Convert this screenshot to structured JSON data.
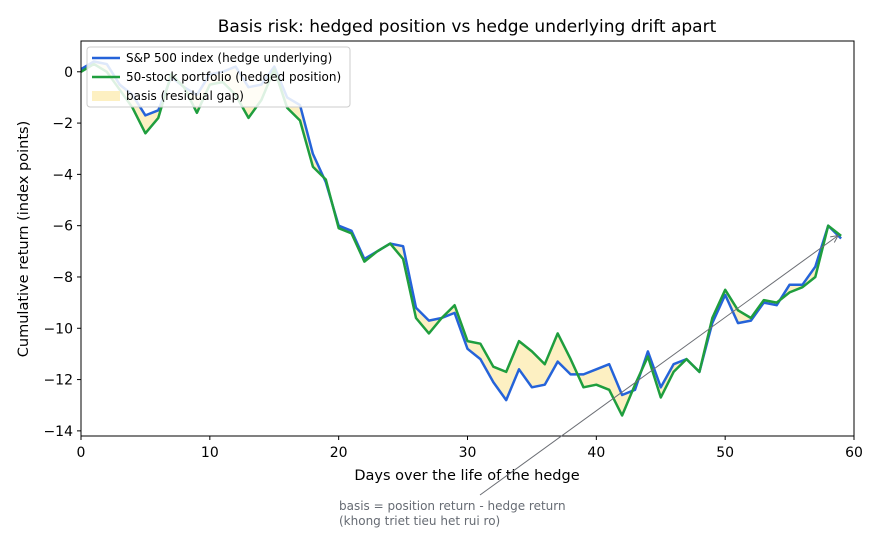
{
  "chart_data": {
    "type": "line",
    "title": "Basis risk: hedged position vs hedge underlying drift apart",
    "xlabel": "Days over the life of the hedge",
    "ylabel": "Cumulative return (index points)",
    "xlim": [
      0,
      60
    ],
    "ylim": [
      -14.2,
      1.2
    ],
    "xticks": [
      0,
      10,
      20,
      30,
      40,
      50,
      60
    ],
    "yticks": [
      0,
      -2,
      -4,
      -6,
      -8,
      -10,
      -12,
      -14
    ],
    "ytick_labels": [
      "0",
      "−2",
      "−4",
      "−6",
      "−8",
      "−10",
      "−12",
      "−14"
    ],
    "grid": false,
    "legend_position": "top-left",
    "x": [
      0,
      1,
      2,
      3,
      4,
      5,
      6,
      7,
      8,
      9,
      10,
      11,
      12,
      13,
      14,
      15,
      16,
      17,
      18,
      19,
      20,
      21,
      22,
      23,
      24,
      25,
      26,
      27,
      28,
      29,
      30,
      31,
      32,
      33,
      34,
      35,
      36,
      37,
      38,
      39,
      40,
      41,
      42,
      43,
      44,
      45,
      46,
      47,
      48,
      49,
      50,
      51,
      52,
      53,
      54,
      55,
      56,
      57,
      58,
      59
    ],
    "series": [
      {
        "name": "S&P 500 index (hedge underlying)",
        "color": "#2563d9",
        "values": [
          0.1,
          0.4,
          0.3,
          -0.5,
          -0.9,
          -1.7,
          -1.5,
          -0.2,
          -0.6,
          -0.9,
          -0.1,
          0.0,
          0.2,
          -0.6,
          -0.5,
          0.2,
          -1.0,
          -1.3,
          -3.2,
          -4.3,
          -6.0,
          -6.2,
          -7.3,
          -7.0,
          -6.7,
          -6.8,
          -9.2,
          -9.7,
          -9.6,
          -9.4,
          -10.8,
          -11.2,
          -12.1,
          -12.8,
          -11.6,
          -12.3,
          -12.2,
          -11.3,
          -11.8,
          -11.8,
          -11.6,
          -11.4,
          -12.6,
          -12.4,
          -10.9,
          -12.3,
          -11.4,
          -11.2,
          -11.7,
          -9.8,
          -8.7,
          -9.8,
          -9.7,
          -9.0,
          -9.1,
          -8.3,
          -8.3,
          -7.6,
          -6.0,
          -6.5
        ]
      },
      {
        "name": "50-stock portfolio (hedged position)",
        "color": "#1f9e3e",
        "values": [
          0.0,
          0.3,
          0.0,
          -0.7,
          -1.4,
          -2.4,
          -1.8,
          -0.1,
          -0.6,
          -1.6,
          -0.5,
          -0.4,
          -0.9,
          -1.8,
          -1.1,
          0.1,
          -1.4,
          -1.9,
          -3.7,
          -4.2,
          -6.1,
          -6.3,
          -7.4,
          -7.0,
          -6.7,
          -7.3,
          -9.6,
          -10.2,
          -9.6,
          -9.1,
          -10.5,
          -10.6,
          -11.5,
          -11.7,
          -10.5,
          -10.9,
          -11.4,
          -10.2,
          -11.2,
          -12.3,
          -12.2,
          -12.4,
          -13.4,
          -12.2,
          -11.1,
          -12.7,
          -11.7,
          -11.2,
          -11.7,
          -9.6,
          -8.5,
          -9.3,
          -9.6,
          -8.9,
          -9.0,
          -8.6,
          -8.4,
          -8.0,
          -6.0,
          -6.4
        ]
      }
    ],
    "fill": {
      "name": "basis (residual gap)",
      "color": "#fdf0c2"
    },
    "annotation": {
      "text_line1": "basis = position return - hedge return",
      "text_line2": "(khong triet tieu het rui ro)",
      "arrow_target": [
        59,
        -6.5
      ],
      "arrow_color": "#6b6e74"
    }
  }
}
